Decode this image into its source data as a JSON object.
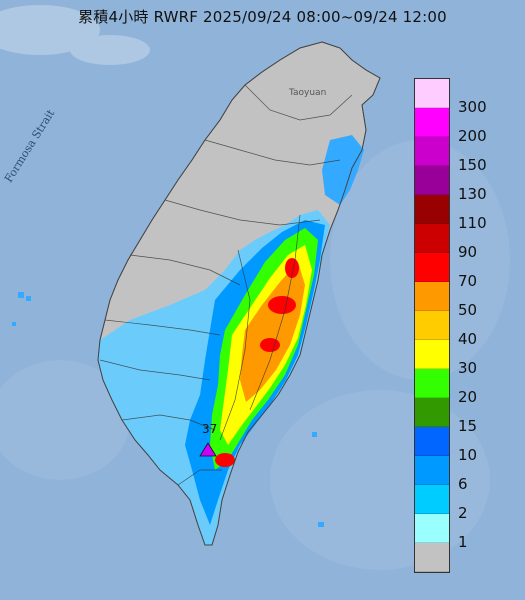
{
  "title": "累積4小時 RWRF 2025/09/24 08:00~09/24 12:00",
  "map_labels": {
    "strait": "Formosa Strait",
    "city": "Taoyuan"
  },
  "max_marker": {
    "value_label": "37"
  },
  "legend": {
    "entries": [
      {
        "label": "300",
        "color": "#ffccff"
      },
      {
        "label": "200",
        "color": "#ff00ff"
      },
      {
        "label": "150",
        "color": "#cc00cc"
      },
      {
        "label": "130",
        "color": "#990099"
      },
      {
        "label": "110",
        "color": "#990000"
      },
      {
        "label": "90",
        "color": "#cc0000"
      },
      {
        "label": "70",
        "color": "#ff0000"
      },
      {
        "label": "50",
        "color": "#ff9900"
      },
      {
        "label": "40",
        "color": "#ffcc00"
      },
      {
        "label": "30",
        "color": "#ffff00"
      },
      {
        "label": "20",
        "color": "#33ff00"
      },
      {
        "label": "15",
        "color": "#339900"
      },
      {
        "label": "10",
        "color": "#0066ff"
      },
      {
        "label": "6",
        "color": "#0099ff"
      },
      {
        "label": "2",
        "color": "#00ccff"
      },
      {
        "label": "1",
        "color": "#99ffff"
      },
      {
        "label": "",
        "color": "#c2c2c2"
      }
    ]
  },
  "colors": {
    "sea": "#8fb3d9",
    "dry_land": "#c2c2c2",
    "light_rain": "#66ccff",
    "moderate_rain": "#0099ff"
  }
}
